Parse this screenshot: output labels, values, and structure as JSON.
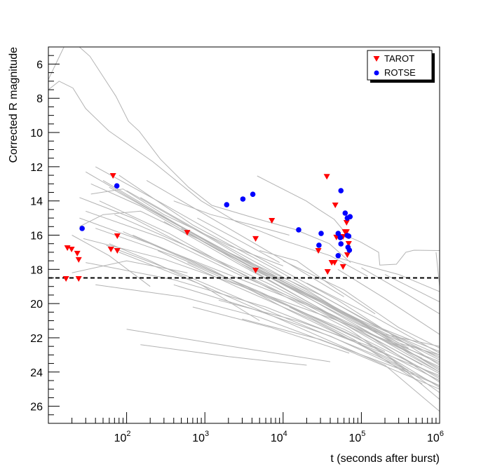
{
  "chart_data": {
    "type": "scatter",
    "title": "",
    "xlabel": "t (seconds after burst)",
    "ylabel": "Corrected R magnitude",
    "xscale": "log",
    "xlim": [
      10,
      1000000
    ],
    "ylim": [
      5,
      27
    ],
    "y_inverted": true,
    "grid": false,
    "legend_position": "top-right",
    "x_tick_labels": [
      {
        "value": 100,
        "base": "10",
        "exp": "2"
      },
      {
        "value": 1000,
        "base": "10",
        "exp": "3"
      },
      {
        "value": 10000,
        "base": "10",
        "exp": "4"
      },
      {
        "value": 100000,
        "base": "10",
        "exp": "5"
      },
      {
        "value": 1000000,
        "base": "10",
        "exp": "6"
      }
    ],
    "y_tick_labels": [
      "6",
      "8",
      "10",
      "12",
      "14",
      "16",
      "18",
      "20",
      "22",
      "24",
      "26"
    ],
    "reference_line": {
      "mag": 18.5,
      "style": "dashed",
      "color": "#000000"
    },
    "series": [
      {
        "name": "TAROT",
        "marker": "triangle-down",
        "color": "#ff0000",
        "points": [
          [
            16.8,
            18.56
          ],
          [
            17.5,
            16.76
          ],
          [
            19.8,
            16.84
          ],
          [
            23.4,
            17.08
          ],
          [
            24.4,
            17.45
          ],
          [
            24.4,
            18.56
          ],
          [
            67,
            12.54
          ],
          [
            63,
            16.84
          ],
          [
            76,
            16.92
          ],
          [
            76,
            16.06
          ],
          [
            595,
            15.86
          ],
          [
            7180,
            15.16
          ],
          [
            4450,
            16.22
          ],
          [
            4450,
            18.07
          ],
          [
            36200,
            12.59
          ],
          [
            46400,
            14.26
          ],
          [
            28200,
            16.92
          ],
          [
            41800,
            17.62
          ],
          [
            45500,
            17.62
          ],
          [
            37000,
            18.15
          ],
          [
            48000,
            16.14
          ],
          [
            64700,
            15.28
          ],
          [
            61800,
            15.82
          ],
          [
            64700,
            15.82
          ],
          [
            58300,
            16.1
          ],
          [
            68900,
            16.51
          ],
          [
            66100,
            17.17
          ],
          [
            58300,
            17.86
          ]
        ]
      },
      {
        "name": "ROTSE",
        "marker": "circle",
        "color": "#0000ff",
        "points": [
          [
            27,
            15.61
          ],
          [
            75,
            13.12
          ],
          [
            1900,
            14.22
          ],
          [
            3060,
            13.89
          ],
          [
            4100,
            13.61
          ],
          [
            15800,
            15.69
          ],
          [
            30600,
            15.9
          ],
          [
            28700,
            16.59
          ],
          [
            54800,
            13.4
          ],
          [
            62100,
            14.71
          ],
          [
            66100,
            15.0
          ],
          [
            71700,
            14.92
          ],
          [
            50500,
            15.9
          ],
          [
            53800,
            16.14
          ],
          [
            54800,
            16.51
          ],
          [
            66100,
            16.02
          ],
          [
            68900,
            16.06
          ],
          [
            67500,
            16.71
          ],
          [
            70300,
            16.88
          ],
          [
            50500,
            17.2
          ]
        ]
      }
    ],
    "light_curves_color": "#b3b3b3",
    "light_curves": [
      [
        [
          10,
          6.9
        ],
        [
          15.8,
          5.0
        ]
      ],
      [
        [
          24.9,
          5.0
        ],
        [
          34,
          5.55
        ],
        [
          73,
          7.88
        ],
        [
          106,
          9.35
        ],
        [
          145,
          9.93
        ],
        [
          270,
          11.56
        ],
        [
          620,
          13.2
        ],
        [
          1230,
          14.26
        ],
        [
          4940,
          15.08
        ],
        [
          13900,
          15.65
        ],
        [
          39000,
          16.5
        ],
        [
          73000,
          17.6
        ]
      ],
      [
        [
          10,
          7.5
        ],
        [
          13.7,
          7.0
        ],
        [
          20.6,
          7.4
        ],
        [
          30,
          8.6
        ],
        [
          59,
          9.9
        ],
        [
          215,
          11.7
        ],
        [
          900,
          14.0
        ],
        [
          2500,
          15.2
        ],
        [
          10000,
          16.3
        ],
        [
          40000,
          17.2
        ],
        [
          120000,
          18.4
        ]
      ],
      [
        [
          4660,
          12.54
        ],
        [
          19700,
          14.0
        ],
        [
          28000,
          14.47
        ],
        [
          45000,
          15.08
        ],
        [
          69000,
          16.1
        ],
        [
          98000,
          16.4
        ],
        [
          166000,
          17.0
        ],
        [
          172000,
          17.75
        ],
        [
          280000,
          17.7
        ],
        [
          370000,
          17.0
        ],
        [
          470000,
          16.88
        ],
        [
          1000000,
          16.9
        ]
      ],
      [
        [
          900000,
          17.0
        ],
        [
          1000000,
          19.0
        ]
      ],
      [
        [
          48000,
          17.3
        ],
        [
          118000,
          17.8
        ],
        [
          300000,
          18.3
        ],
        [
          1000000,
          19.3
        ]
      ],
      [
        [
          30,
          12.3
        ],
        [
          200,
          14.5
        ],
        [
          2000,
          17.0
        ],
        [
          30000,
          19.5
        ],
        [
          300000,
          22.0
        ],
        [
          1000000,
          23.2
        ]
      ],
      [
        [
          40,
          12.0
        ],
        [
          300,
          14.2
        ],
        [
          3000,
          16.8
        ],
        [
          50000,
          19.8
        ],
        [
          1000000,
          23.6
        ]
      ],
      [
        [
          35,
          13.0
        ],
        [
          150,
          14.3
        ],
        [
          1500,
          16.9
        ],
        [
          20000,
          19.4
        ],
        [
          400000,
          22.6
        ]
      ],
      [
        [
          50,
          12.8
        ],
        [
          500,
          15.5
        ],
        [
          5000,
          18.0
        ],
        [
          80000,
          20.8
        ],
        [
          1000000,
          23.9
        ]
      ],
      [
        [
          25,
          13.8
        ],
        [
          120,
          15.0
        ],
        [
          1000,
          17.2
        ],
        [
          15000,
          19.8
        ],
        [
          200000,
          22.4
        ],
        [
          1000000,
          24.1
        ]
      ],
      [
        [
          60,
          13.2
        ],
        [
          400,
          15.3
        ],
        [
          6000,
          18.2
        ],
        [
          100000,
          21.0
        ],
        [
          1000000,
          23.0
        ]
      ],
      [
        [
          30,
          14.6
        ],
        [
          300,
          16.2
        ],
        [
          3000,
          18.4
        ],
        [
          40000,
          20.6
        ],
        [
          600000,
          23.2
        ]
      ],
      [
        [
          80,
          12.5
        ],
        [
          700,
          15.4
        ],
        [
          8000,
          18.0
        ],
        [
          150000,
          21.3
        ],
        [
          1000000,
          22.8
        ]
      ],
      [
        [
          25,
          15.0
        ],
        [
          200,
          16.5
        ],
        [
          2000,
          18.3
        ],
        [
          30000,
          20.4
        ],
        [
          1000000,
          24.4
        ]
      ],
      [
        [
          45,
          14.0
        ],
        [
          350,
          15.9
        ],
        [
          4000,
          18.6
        ],
        [
          70000,
          21.5
        ],
        [
          1000000,
          25.2
        ]
      ],
      [
        [
          100,
          13.4
        ],
        [
          1000,
          16.0
        ],
        [
          10000,
          18.7
        ],
        [
          200000,
          22.0
        ],
        [
          1000000,
          23.5
        ]
      ],
      [
        [
          28,
          16.2
        ],
        [
          300,
          17.4
        ],
        [
          3000,
          19.0
        ],
        [
          50000,
          21.0
        ],
        [
          1000000,
          23.4
        ]
      ],
      [
        [
          70,
          14.8
        ],
        [
          700,
          16.8
        ],
        [
          7000,
          18.9
        ],
        [
          100000,
          21.6
        ],
        [
          1000000,
          24.6
        ]
      ],
      [
        [
          150,
          13.8
        ],
        [
          1500,
          16.4
        ],
        [
          20000,
          19.2
        ],
        [
          300000,
          22.5
        ],
        [
          1000000,
          23.8
        ]
      ],
      [
        [
          40,
          15.6
        ],
        [
          400,
          17.2
        ],
        [
          5000,
          19.3
        ],
        [
          90000,
          22.0
        ],
        [
          1000000,
          24.9
        ]
      ],
      [
        [
          200,
          14.5
        ],
        [
          2000,
          17.1
        ],
        [
          20000,
          19.6
        ],
        [
          400000,
          23.0
        ],
        [
          1000000,
          24.0
        ]
      ],
      [
        [
          90,
          15.8
        ],
        [
          1000,
          17.9
        ],
        [
          10000,
          20.0
        ],
        [
          200000,
          22.8
        ]
      ],
      [
        [
          30,
          17.6
        ],
        [
          400,
          18.6
        ],
        [
          6000,
          20.2
        ],
        [
          100000,
          22.4
        ],
        [
          1000000,
          24.2
        ]
      ],
      [
        [
          120,
          16.0
        ],
        [
          1200,
          18.0
        ],
        [
          12000,
          20.4
        ],
        [
          250000,
          23.3
        ],
        [
          1000000,
          25.6
        ]
      ],
      [
        [
          300,
          15.2
        ],
        [
          3000,
          17.8
        ],
        [
          30000,
          20.3
        ],
        [
          600000,
          23.6
        ]
      ],
      [
        [
          55,
          16.6
        ],
        [
          600,
          18.4
        ],
        [
          8000,
          20.6
        ],
        [
          150000,
          23.0
        ],
        [
          1000000,
          24.8
        ]
      ],
      [
        [
          500,
          15.6
        ],
        [
          5000,
          18.3
        ],
        [
          50000,
          20.9
        ],
        [
          1000000,
          23.7
        ]
      ],
      [
        [
          80,
          17.0
        ],
        [
          800,
          18.8
        ],
        [
          9000,
          20.9
        ],
        [
          200000,
          23.6
        ],
        [
          1000000,
          26.3
        ]
      ],
      [
        [
          1000,
          16.4
        ],
        [
          10000,
          18.9
        ],
        [
          100000,
          21.3
        ],
        [
          1000000,
          23.1
        ]
      ],
      [
        [
          250,
          16.9
        ],
        [
          2500,
          19.0
        ],
        [
          25000,
          21.0
        ],
        [
          400000,
          23.9
        ]
      ],
      [
        [
          2000,
          17.0
        ],
        [
          20000,
          19.3
        ],
        [
          200000,
          21.8
        ],
        [
          1000000,
          22.5
        ]
      ],
      [
        [
          600,
          17.6
        ],
        [
          6000,
          19.6
        ],
        [
          60000,
          21.5
        ],
        [
          1000000,
          24.3
        ]
      ],
      [
        [
          3000,
          17.7
        ],
        [
          30000,
          19.9
        ],
        [
          300000,
          22.3
        ],
        [
          1000000,
          23.0
        ]
      ],
      [
        [
          40,
          18.9
        ],
        [
          500,
          19.6
        ],
        [
          5000,
          20.8
        ],
        [
          50000,
          22.5
        ],
        [
          1000000,
          25.0
        ]
      ],
      [
        [
          5000,
          18.2
        ],
        [
          50000,
          20.4
        ],
        [
          500000,
          22.6
        ],
        [
          1000000,
          23.3
        ]
      ],
      [
        [
          100,
          21.5
        ],
        [
          3000,
          22.6
        ],
        [
          40000,
          23.4
        ]
      ],
      [
        [
          150,
          22.4
        ],
        [
          2000,
          23.1
        ],
        [
          20000,
          23.6
        ]
      ],
      [
        [
          1500,
          19.8
        ],
        [
          15000,
          21.0
        ],
        [
          150000,
          22.6
        ],
        [
          1000000,
          24.5
        ]
      ],
      [
        [
          8000,
          18.6
        ],
        [
          60000,
          20.5
        ],
        [
          400000,
          22.9
        ],
        [
          1000000,
          24.0
        ]
      ],
      [
        [
          20,
          16.0
        ],
        [
          60,
          17.2
        ],
        [
          200,
          19.0
        ]
      ],
      [
        [
          20,
          18.2
        ],
        [
          100,
          17.5
        ],
        [
          600,
          18.2
        ]
      ],
      [
        [
          25,
          15.5
        ],
        [
          50,
          14.8
        ],
        [
          150,
          14.6
        ],
        [
          800,
          16.2
        ]
      ],
      [
        [
          60,
          16.5
        ],
        [
          200,
          17.5
        ],
        [
          900,
          18.9
        ],
        [
          5000,
          21.0
        ]
      ],
      [
        [
          400,
          18.9
        ],
        [
          4000,
          20.3
        ],
        [
          40000,
          21.9
        ],
        [
          400000,
          24.0
        ]
      ],
      [
        [
          10000,
          17.5
        ],
        [
          60000,
          19.2
        ],
        [
          300000,
          21.4
        ],
        [
          1000000,
          22.6
        ]
      ],
      [
        [
          20000,
          18.8
        ],
        [
          150000,
          20.8
        ],
        [
          1000000,
          22.9
        ]
      ],
      [
        [
          12000,
          20.2
        ],
        [
          80000,
          22.1
        ],
        [
          600000,
          24.7
        ]
      ],
      [
        [
          700,
          20.2
        ],
        [
          7000,
          21.4
        ],
        [
          70000,
          22.9
        ]
      ],
      [
        [
          3000,
          20.9
        ],
        [
          30000,
          22.1
        ],
        [
          300000,
          23.8
        ],
        [
          1000000,
          24.8
        ]
      ],
      [
        [
          50000,
          18.0
        ],
        [
          200000,
          19.7
        ],
        [
          1000000,
          21.8
        ]
      ],
      [
        [
          100000,
          17.9
        ],
        [
          400000,
          19.5
        ],
        [
          1000000,
          20.6
        ]
      ],
      [
        [
          200000,
          18.3
        ],
        [
          1000000,
          19.9
        ]
      ],
      [
        [
          35,
          13.6
        ],
        [
          90,
          13.3
        ],
        [
          300,
          14.8
        ],
        [
          2000,
          16.6
        ],
        [
          10000,
          17.8
        ]
      ],
      [
        [
          180,
          12.8
        ],
        [
          1200,
          15.0
        ],
        [
          8000,
          17.2
        ],
        [
          60000,
          19.6
        ]
      ],
      [
        [
          5000,
          16.9
        ],
        [
          15000,
          17.5
        ],
        [
          40000,
          18.9
        ],
        [
          150000,
          20.6
        ]
      ],
      [
        [
          800,
          15.0
        ],
        [
          3000,
          16.4
        ],
        [
          9000,
          17.6
        ]
      ],
      [
        [
          400,
          14.0
        ],
        [
          1200,
          14.8
        ],
        [
          4000,
          15.4
        ],
        [
          12000,
          16.0
        ]
      ]
    ]
  }
}
